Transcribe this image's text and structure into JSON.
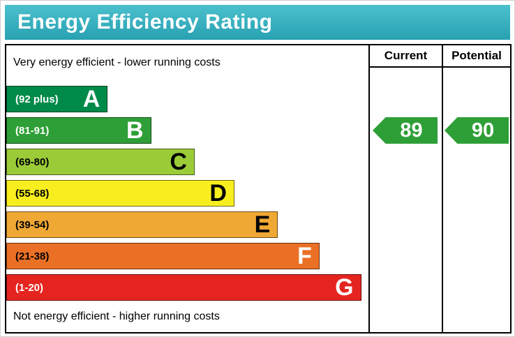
{
  "title": "Energy Efficiency Rating",
  "columns": [
    {
      "label": "Current"
    },
    {
      "label": "Potential"
    }
  ],
  "colors": {
    "header_gradient_top": "#4cc0cd",
    "header_gradient_bottom": "#28a1b2",
    "header_text": "#ffffff",
    "table_border": "#000000",
    "arrow": "#2e9f37"
  },
  "chart_data": {
    "type": "bar",
    "title": "Energy Efficiency Rating",
    "annotations": {
      "top": "Very energy efficient - lower running costs",
      "bottom": "Not energy efficient - higher running costs"
    },
    "bands": [
      {
        "letter": "A",
        "range": "(92 plus)",
        "color": "#008a49",
        "range_text_color": "#ffffff",
        "letter_color": "#ffffff",
        "width_pct": 28
      },
      {
        "letter": "B",
        "range": "(81-91)",
        "color": "#2e9f37",
        "range_text_color": "#ffffff",
        "letter_color": "#ffffff",
        "width_pct": 40
      },
      {
        "letter": "C",
        "range": "(69-80)",
        "color": "#9bcc38",
        "range_text_color": "#000000",
        "letter_color": "#000000",
        "width_pct": 52
      },
      {
        "letter": "D",
        "range": "(55-68)",
        "color": "#f8ee1f",
        "range_text_color": "#000000",
        "letter_color": "#000000",
        "width_pct": 63
      },
      {
        "letter": "E",
        "range": "(39-54)",
        "color": "#f0a835",
        "range_text_color": "#000000",
        "letter_color": "#000000",
        "width_pct": 75
      },
      {
        "letter": "F",
        "range": "(21-38)",
        "color": "#ea7025",
        "range_text_color": "#000000",
        "letter_color": "#ffffff",
        "width_pct": 86.5
      },
      {
        "letter": "G",
        "range": "(1-20)",
        "color": "#e5241f",
        "range_text_color": "#ffffff",
        "letter_color": "#ffffff",
        "width_pct": 98
      }
    ],
    "current": {
      "column": "Current",
      "band": "B",
      "value": 89
    },
    "potential": {
      "column": "Potential",
      "band": "B",
      "value": 90
    }
  }
}
